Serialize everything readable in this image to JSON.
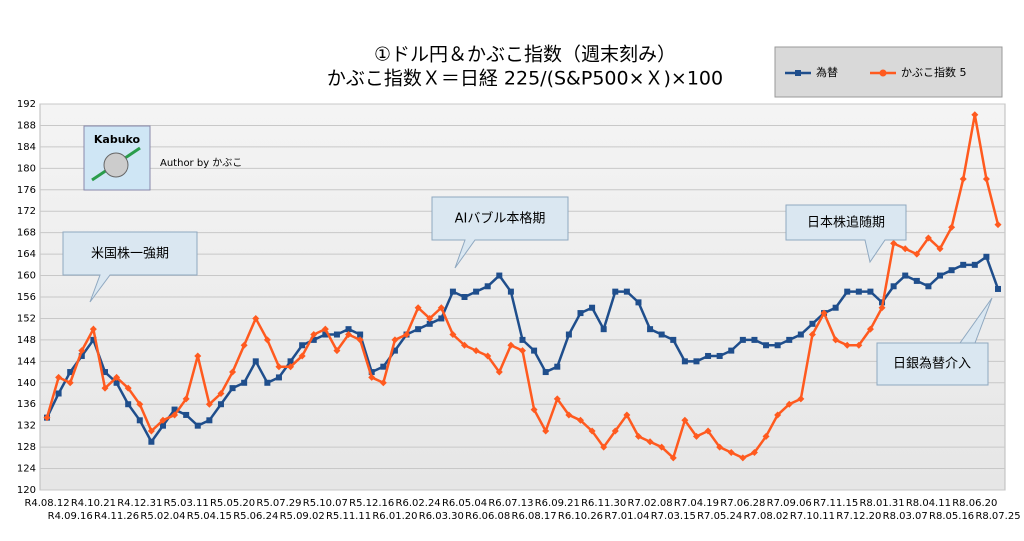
{
  "chart_data": {
    "type": "line",
    "title": "①ドル円＆かぶこ指数（週末刻み）",
    "subtitle": "かぶこ指数Ｘ＝日経 225/(S&P500×Ｘ)×100",
    "logo": "Kabuko",
    "author": "Author by かぶこ",
    "annotations": [
      "米国株一強期",
      "AIバブル本格期",
      "日本株追随期",
      "日銀為替介入"
    ],
    "categories": [
      "R4.08.12",
      null,
      "R4.09.16",
      null,
      "R4.10.21",
      null,
      "R4.11.26",
      null,
      "R4.12.31",
      null,
      "R5.02.04",
      null,
      "R5.03.11",
      null,
      "R5.04.15",
      null,
      "R5.05.20",
      null,
      "R5.06.24",
      null,
      "R5.07.29",
      null,
      "R5.09.02",
      null,
      "R5.10.07",
      null,
      "R5.11.11",
      null,
      "R5.12.16",
      null,
      "R6.01.20",
      null,
      "R6.02.24",
      null,
      "R6.03.30",
      null,
      "R6.05.04",
      null,
      "R6.06.08",
      null,
      "R6.07.13",
      null,
      "R6.08.17",
      null,
      "R6.09.21",
      null,
      "R6.10.26",
      null,
      "R6.11.30",
      null,
      "R7.01.04",
      null,
      "R7.02.08",
      null,
      "R7.03.15",
      null,
      "R7.04.19",
      null,
      "R7.05.24",
      null,
      "R7.06.28",
      null,
      "R7.08.02",
      null,
      "R7.09.06",
      null,
      "R7.10.11",
      null,
      "R7.11.15",
      null,
      "R7.12.20",
      null,
      "R8.01.31",
      null,
      "R8.03.07",
      null,
      "R8.04.11",
      null,
      "R8.05.16",
      null,
      "R8.06.20",
      null,
      "R8.07.25"
    ],
    "series": [
      {
        "name": "為替",
        "color": "#1f4e8c",
        "marker": "square",
        "values": [
          133.5,
          138,
          142,
          145,
          148,
          142,
          140,
          136,
          133,
          129,
          132,
          135,
          134,
          132,
          133,
          136,
          139,
          140,
          144,
          140,
          141,
          144,
          147,
          148,
          149,
          149,
          150,
          149,
          142,
          143,
          146,
          149,
          150,
          151,
          152,
          157,
          156,
          157,
          158,
          160,
          157,
          148,
          146,
          142,
          143,
          149,
          153,
          154,
          150,
          157,
          157,
          155,
          150,
          149,
          148,
          144,
          144,
          145,
          145,
          146,
          148,
          148,
          147,
          147,
          148,
          149,
          151,
          153,
          154,
          157,
          157,
          157,
          155,
          158,
          160,
          159,
          158,
          160,
          161,
          162,
          162,
          163.5,
          157.5
        ]
      },
      {
        "name": "かぶこ指数 5",
        "color": "#ff5a1f",
        "marker": "diamond",
        "values": [
          133.5,
          141,
          140,
          146,
          150,
          139,
          141,
          139,
          136,
          131,
          133,
          134,
          137,
          145,
          136,
          138,
          142,
          147,
          152,
          148,
          143,
          143,
          145,
          149,
          150,
          146,
          149,
          148,
          141,
          140,
          148,
          149,
          154,
          152,
          154,
          149,
          147,
          146,
          145,
          142,
          147,
          146,
          135,
          131,
          137,
          134,
          133,
          131,
          128,
          131,
          134,
          130,
          129,
          128,
          126,
          133,
          130,
          131,
          128,
          127,
          126,
          127,
          130,
          134,
          136,
          137,
          149,
          153,
          148,
          147,
          147,
          150,
          154,
          166,
          165,
          164,
          167,
          165,
          169,
          178,
          190,
          178,
          169.5
        ]
      }
    ],
    "ylim": [
      120,
      192
    ],
    "yticks": [
      120,
      124,
      128,
      132,
      136,
      140,
      144,
      148,
      152,
      156,
      160,
      164,
      168,
      172,
      176,
      180,
      184,
      188,
      192
    ],
    "grid": true
  }
}
